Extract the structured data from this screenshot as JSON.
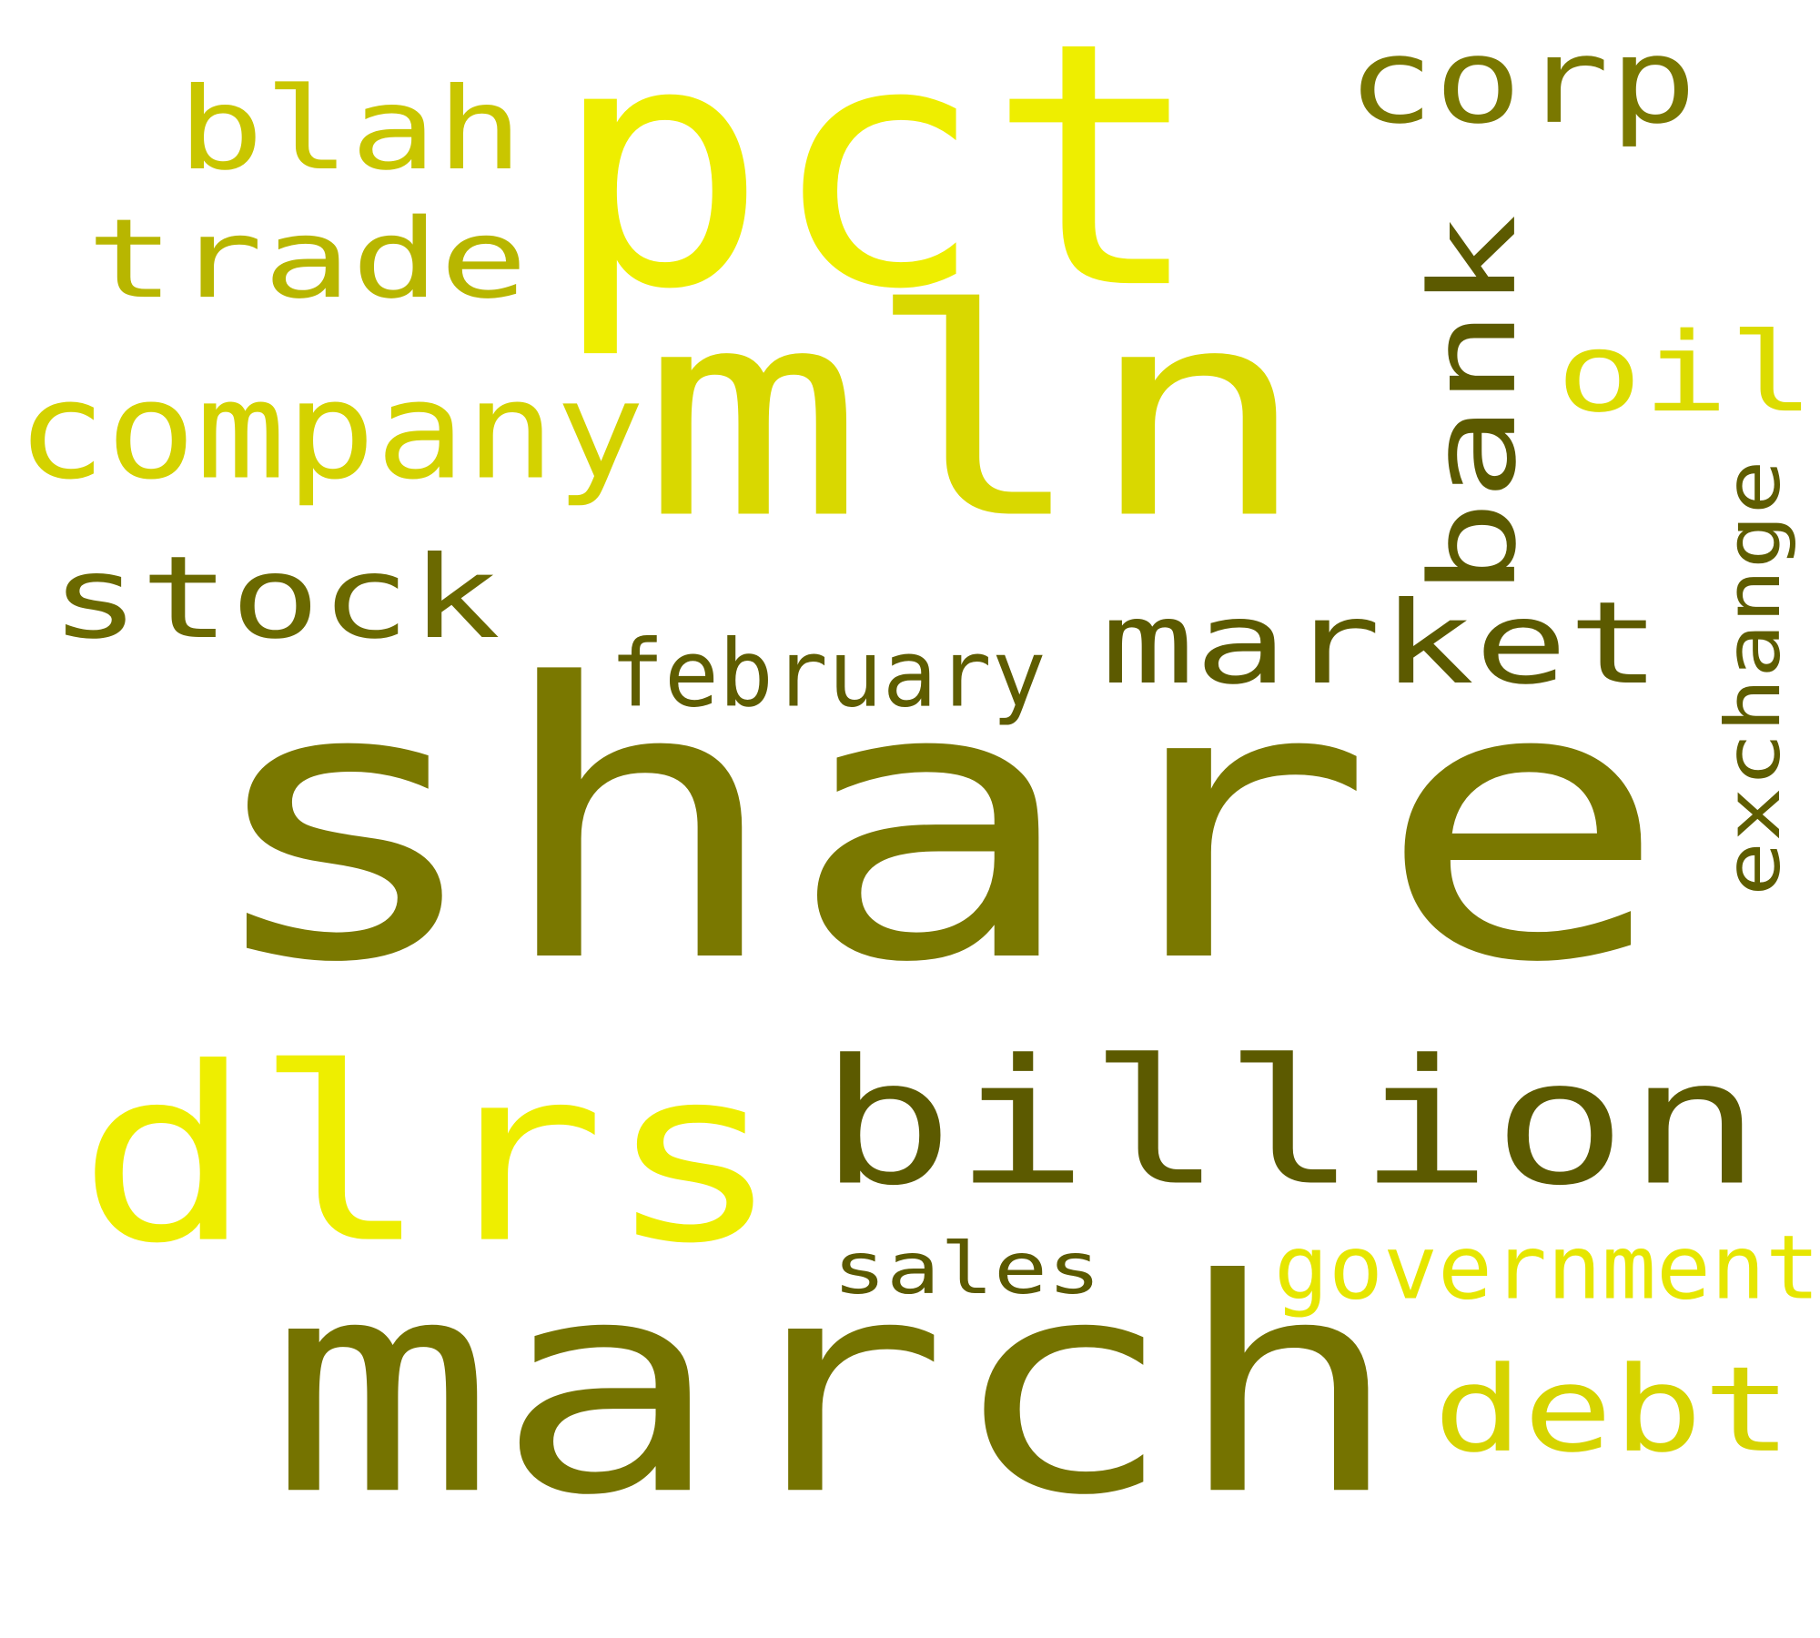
{
  "background": "#ffffff",
  "palette": {
    "olive_dark": "#5c5a00",
    "olive": "#7a7800",
    "olive_mid": "#8e8c00",
    "yellow_olive": "#b8b600",
    "yellow_mid": "#cfcc00",
    "yellow_lime": "#d9d800",
    "yellow_bright": "#eeee00"
  },
  "words": [
    {
      "id": "share",
      "text": "share",
      "color": "#7a7800",
      "vertical": false
    },
    {
      "id": "pct",
      "text": "pct",
      "color": "#eeee00",
      "vertical": false
    },
    {
      "id": "mln",
      "text": "mln",
      "color": "#d9d800",
      "vertical": false
    },
    {
      "id": "march",
      "text": "march",
      "color": "#757300",
      "vertical": false
    },
    {
      "id": "dlrs",
      "text": "dlrs",
      "color": "#eeee00",
      "vertical": false
    },
    {
      "id": "billion",
      "text": "billion",
      "color": "#5c5a00",
      "vertical": false
    },
    {
      "id": "market",
      "text": "market",
      "color": "#5c5a00",
      "vertical": false
    },
    {
      "id": "stock",
      "text": "stock",
      "color": "#6b6900",
      "vertical": false
    },
    {
      "id": "company",
      "text": "company",
      "color": "#d4d200",
      "vertical": false
    },
    {
      "id": "trade",
      "text": "trade",
      "color": "#b8b600",
      "vertical": false
    },
    {
      "id": "blah",
      "text": "blah",
      "color": "#c9c600",
      "vertical": false
    },
    {
      "id": "corp",
      "text": "corp",
      "color": "#7a7800",
      "vertical": false
    },
    {
      "id": "bank",
      "text": "bank",
      "color": "#5c5a00",
      "vertical": true
    },
    {
      "id": "oil",
      "text": "oil",
      "color": "#dcdc00",
      "vertical": false
    },
    {
      "id": "exchange",
      "text": "exchange",
      "color": "#5f5d00",
      "vertical": true
    },
    {
      "id": "february",
      "text": "february",
      "color": "#5f5d00",
      "vertical": false
    },
    {
      "id": "debt",
      "text": "debt",
      "color": "#d6d400",
      "vertical": false
    },
    {
      "id": "government",
      "text": "government",
      "color": "#e6e600",
      "vertical": false
    },
    {
      "id": "sales",
      "text": "sales",
      "color": "#5c5a00",
      "vertical": false
    }
  ]
}
